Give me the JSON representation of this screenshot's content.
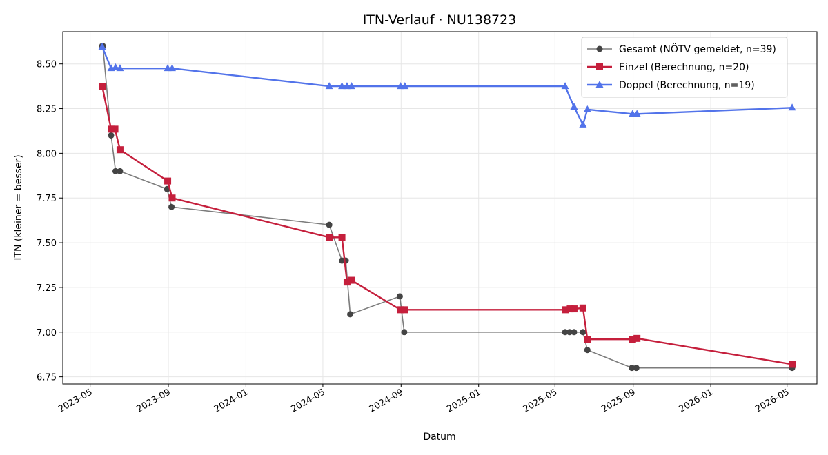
{
  "chart_data": {
    "type": "line",
    "title": "ITN-Verlauf · NU138723",
    "xlabel": "Datum",
    "ylabel": "ITN  (kleiner = besser)",
    "x_range": [
      "2023-03-19",
      "2026-06-17"
    ],
    "ylim": [
      6.71,
      8.68
    ],
    "x_ticks": [
      "2023-05-01",
      "2023-09-01",
      "2024-01-01",
      "2024-05-01",
      "2024-09-01",
      "2025-01-01",
      "2025-05-01",
      "2025-09-01",
      "2026-01-01",
      "2026-05-01"
    ],
    "x_tick_labels": [
      "2023-05",
      "2023-09",
      "2024-01",
      "2024-05",
      "2024-09",
      "2025-01",
      "2025-05",
      "2025-09",
      "2026-01",
      "2026-05"
    ],
    "y_ticks": [
      6.75,
      7.0,
      7.25,
      7.5,
      7.75,
      8.0,
      8.25,
      8.5
    ],
    "y_tick_labels": [
      "6.75",
      "7.00",
      "7.25",
      "7.50",
      "7.75",
      "8.00",
      "8.25",
      "8.50"
    ],
    "grid": true,
    "legend_position": "top-right",
    "series": [
      {
        "name": "Gesamt (NÖTV gemeldet, n=39)",
        "color": "#444444",
        "marker": "circle",
        "line_opacity": 0.7,
        "line_width": 1.6,
        "points": [
          {
            "x": "2023-05-20",
            "y": 8.6
          },
          {
            "x": "2023-05-21",
            "y": 8.6
          },
          {
            "x": "2023-06-03",
            "y": 8.1
          },
          {
            "x": "2023-06-10",
            "y": 7.9
          },
          {
            "x": "2023-06-17",
            "y": 7.9
          },
          {
            "x": "2023-08-30",
            "y": 7.8
          },
          {
            "x": "2023-09-06",
            "y": 7.7
          },
          {
            "x": "2024-05-11",
            "y": 7.6
          },
          {
            "x": "2024-05-31",
            "y": 7.4
          },
          {
            "x": "2024-06-06",
            "y": 7.4
          },
          {
            "x": "2024-06-13",
            "y": 7.1
          },
          {
            "x": "2024-08-30",
            "y": 7.2
          },
          {
            "x": "2024-09-06",
            "y": 7.0
          },
          {
            "x": "2025-05-17",
            "y": 7.0
          },
          {
            "x": "2025-05-24",
            "y": 7.0
          },
          {
            "x": "2025-05-31",
            "y": 7.0
          },
          {
            "x": "2025-06-14",
            "y": 7.0
          },
          {
            "x": "2025-06-21",
            "y": 6.9
          },
          {
            "x": "2025-08-30",
            "y": 6.8
          },
          {
            "x": "2025-09-06",
            "y": 6.8
          },
          {
            "x": "2026-05-09",
            "y": 6.8
          }
        ]
      },
      {
        "name": "Einzel (Berechnung, n=20)",
        "color": "#c51f3c",
        "marker": "square",
        "line_opacity": 1,
        "line_width": 2.4,
        "points": [
          {
            "x": "2023-05-20",
            "y": 8.375
          },
          {
            "x": "2023-06-03",
            "y": 8.135
          },
          {
            "x": "2023-06-09",
            "y": 8.135
          },
          {
            "x": "2023-06-17",
            "y": 8.02
          },
          {
            "x": "2023-08-31",
            "y": 7.845
          },
          {
            "x": "2023-09-07",
            "y": 7.75
          },
          {
            "x": "2024-05-11",
            "y": 7.53
          },
          {
            "x": "2024-05-31",
            "y": 7.53
          },
          {
            "x": "2024-06-08",
            "y": 7.28
          },
          {
            "x": "2024-06-15",
            "y": 7.29
          },
          {
            "x": "2024-08-31",
            "y": 7.125
          },
          {
            "x": "2024-09-07",
            "y": 7.125
          },
          {
            "x": "2025-05-17",
            "y": 7.125
          },
          {
            "x": "2025-05-25",
            "y": 7.13
          },
          {
            "x": "2025-05-31",
            "y": 7.13
          },
          {
            "x": "2025-06-14",
            "y": 7.135
          },
          {
            "x": "2025-06-21",
            "y": 6.96
          },
          {
            "x": "2025-08-31",
            "y": 6.96
          },
          {
            "x": "2025-09-07",
            "y": 6.965
          },
          {
            "x": "2026-05-09",
            "y": 6.82
          }
        ]
      },
      {
        "name": "Doppel (Berechnung, n=19)",
        "color": "#5273ea",
        "marker": "triangle",
        "line_opacity": 1,
        "line_width": 2.4,
        "points": [
          {
            "x": "2023-05-20",
            "y": 8.595
          },
          {
            "x": "2023-06-03",
            "y": 8.475
          },
          {
            "x": "2023-06-10",
            "y": 8.48
          },
          {
            "x": "2023-06-17",
            "y": 8.475
          },
          {
            "x": "2023-08-31",
            "y": 8.475
          },
          {
            "x": "2023-09-07",
            "y": 8.475
          },
          {
            "x": "2024-05-11",
            "y": 8.375
          },
          {
            "x": "2024-05-31",
            "y": 8.375
          },
          {
            "x": "2024-06-08",
            "y": 8.375
          },
          {
            "x": "2024-06-15",
            "y": 8.375
          },
          {
            "x": "2024-08-31",
            "y": 8.375
          },
          {
            "x": "2024-09-07",
            "y": 8.375
          },
          {
            "x": "2025-05-17",
            "y": 8.375
          },
          {
            "x": "2025-05-31",
            "y": 8.26
          },
          {
            "x": "2025-06-14",
            "y": 8.16
          },
          {
            "x": "2025-06-21",
            "y": 8.245
          },
          {
            "x": "2025-08-31",
            "y": 8.22
          },
          {
            "x": "2025-09-07",
            "y": 8.22
          },
          {
            "x": "2026-05-09",
            "y": 8.255
          }
        ]
      }
    ]
  }
}
